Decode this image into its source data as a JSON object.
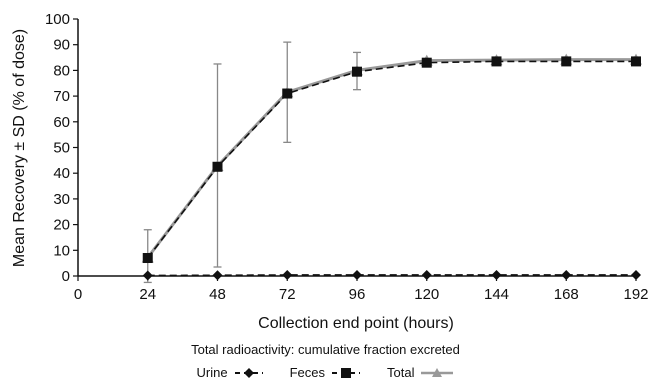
{
  "chart_data": {
    "type": "line",
    "title": "",
    "subtitle": "Total radioactivity: cumulative fraction excreted",
    "xlabel": "Collection end point (hours)",
    "ylabel": "Mean Recovery ± SD (% of dose)",
    "xlim": [
      0,
      192
    ],
    "ylim": [
      0,
      100
    ],
    "x_ticks": [
      0,
      24,
      48,
      72,
      96,
      120,
      144,
      168,
      192
    ],
    "y_ticks": [
      0,
      10,
      20,
      30,
      40,
      50,
      60,
      70,
      80,
      90,
      100
    ],
    "x": [
      24,
      48,
      72,
      96,
      120,
      144,
      168,
      192
    ],
    "grid": false,
    "legend_position": "bottom-center",
    "series": [
      {
        "name": "Urine",
        "marker": "diamond",
        "line": "dashed",
        "color": "#111111",
        "values": [
          0.2,
          0.3,
          0.4,
          0.4,
          0.4,
          0.4,
          0.4,
          0.4
        ]
      },
      {
        "name": "Feces",
        "marker": "square",
        "line": "dashed",
        "color": "#111111",
        "values": [
          7,
          42.5,
          71,
          79.5,
          83,
          83.5,
          83.5,
          83.5
        ]
      },
      {
        "name": "Total",
        "marker": "triangle",
        "line": "solid",
        "color": "#999999",
        "values": [
          7.2,
          42.8,
          71.5,
          80,
          83.8,
          84,
          84.2,
          84.2
        ],
        "error_low": [
          -2.5,
          3.5,
          52,
          72.5,
          83.5,
          83.5,
          84,
          84
        ],
        "error_high": [
          18,
          82.5,
          91,
          87,
          84.5,
          84.5,
          84.5,
          84.5
        ]
      }
    ]
  }
}
